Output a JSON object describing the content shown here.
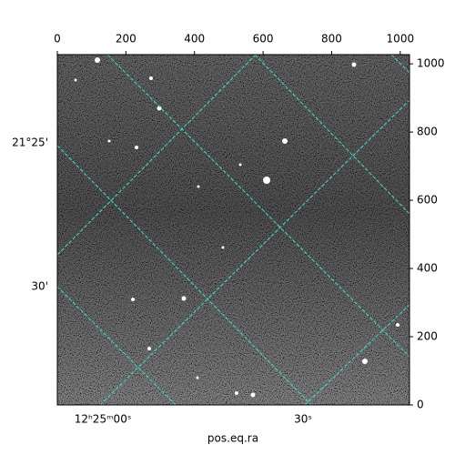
{
  "chart_data": {
    "type": "image",
    "xlabel": "pos.eq.ra",
    "xlim": [
      0,
      1027
    ],
    "ylim": [
      0,
      1027
    ],
    "xticks": [
      0,
      200,
      400,
      600,
      800,
      1000
    ],
    "yticks": [
      0,
      200,
      400,
      600,
      800,
      1000
    ],
    "ra_tick_labels": [
      "12ʰ25ᵐ00ˢ",
      "30ˢ"
    ],
    "dec_tick_labels": [
      "21°25'",
      "30'"
    ],
    "grid": true,
    "grid_color": "#40e0d0"
  }
}
